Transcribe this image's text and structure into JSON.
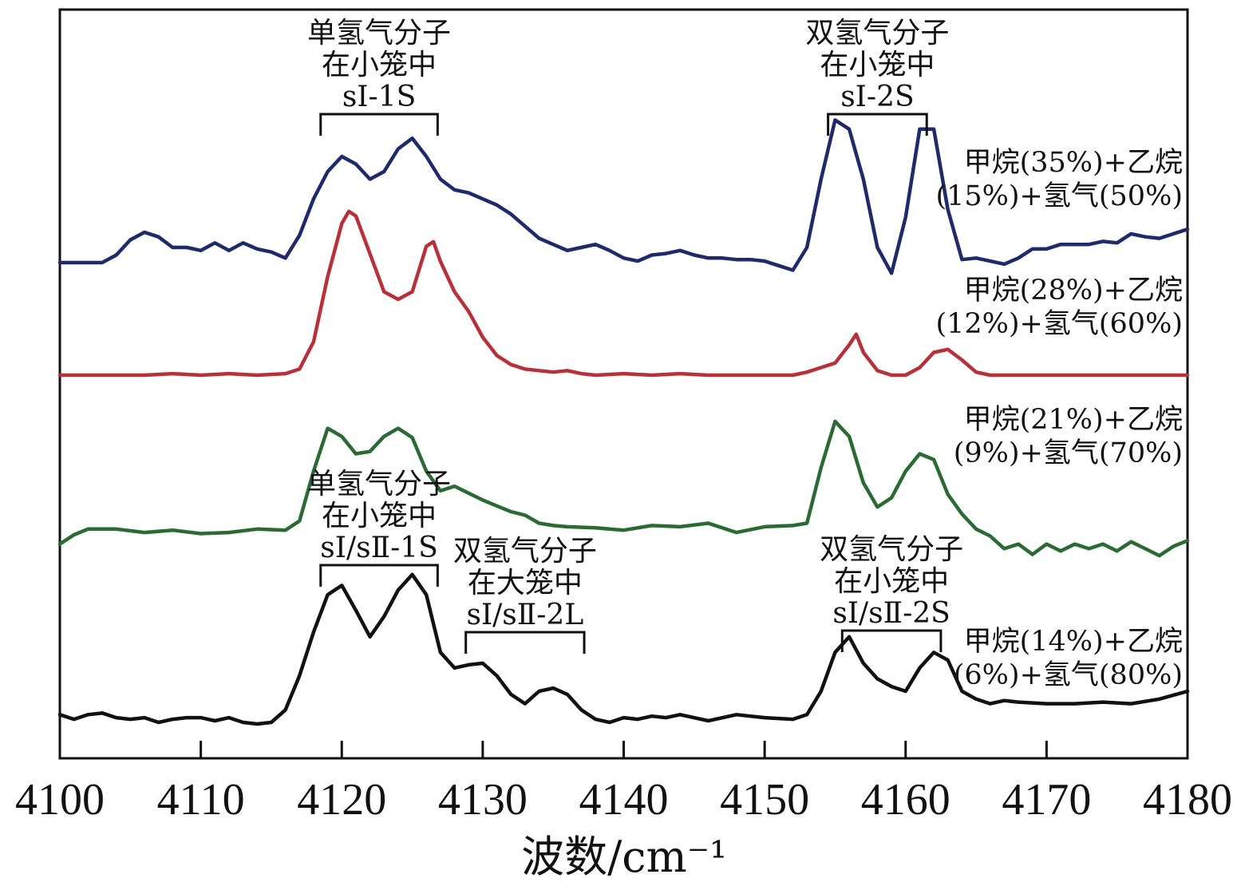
{
  "chart_data": {
    "type": "line",
    "xlabel": "波数/cm⁻¹",
    "ylabel": "",
    "xlim": [
      4100,
      4180
    ],
    "xticks": [
      4100,
      4110,
      4120,
      4130,
      4140,
      4150,
      4160,
      4170,
      4180
    ],
    "grid": false,
    "legend": "inline-right",
    "series": [
      {
        "name": "甲烷(35%)+乙烷(15%)+氢气(50%)",
        "label_lines": [
          "甲烷(35%)+乙烷",
          "(15%)+氢气(50%)"
        ],
        "color": "#1f2a6b",
        "x": [
          4100,
          4102,
          4103,
          4104,
          4105,
          4106,
          4107,
          4108,
          4109,
          4110,
          4111,
          4112,
          4113,
          4114,
          4115,
          4116,
          4117,
          4118,
          4119,
          4120,
          4121,
          4122,
          4123,
          4124,
          4125,
          4126,
          4127,
          4128,
          4129,
          4130,
          4131,
          4132,
          4133,
          4134,
          4135,
          4136,
          4137,
          4138,
          4139,
          4140,
          4141,
          4142,
          4143,
          4144,
          4145,
          4146,
          4147,
          4148,
          4149,
          4150,
          4151,
          4152,
          4153,
          4154,
          4155,
          4156,
          4157,
          4158,
          4159,
          4160,
          4161,
          4162,
          4163,
          4164,
          4165,
          4166,
          4167,
          4168,
          4169,
          4170,
          4171,
          4172,
          4173,
          4174,
          4175,
          4176,
          4177,
          4178,
          4180
        ],
        "y": [
          0.0,
          0.0,
          0.0,
          0.05,
          0.15,
          0.2,
          0.17,
          0.1,
          0.1,
          0.08,
          0.13,
          0.08,
          0.13,
          0.09,
          0.07,
          0.03,
          0.18,
          0.42,
          0.6,
          0.7,
          0.65,
          0.55,
          0.6,
          0.75,
          0.82,
          0.7,
          0.55,
          0.48,
          0.46,
          0.42,
          0.38,
          0.32,
          0.24,
          0.16,
          0.12,
          0.08,
          0.1,
          0.12,
          0.08,
          0.03,
          0.01,
          0.05,
          0.06,
          0.08,
          0.05,
          0.03,
          0.03,
          0.02,
          0.02,
          0.01,
          -0.02,
          -0.05,
          0.1,
          0.55,
          0.94,
          0.88,
          0.55,
          0.1,
          -0.07,
          0.3,
          0.88,
          0.88,
          0.35,
          0.02,
          0.03,
          0.01,
          -0.01,
          0.03,
          0.09,
          0.09,
          0.12,
          0.12,
          0.12,
          0.14,
          0.13,
          0.19,
          0.17,
          0.16,
          0.22
        ]
      },
      {
        "name": "甲烷(28%)+乙烷(12%)+氢气(60%)",
        "label_lines": [
          "甲烷(28%)+乙烷",
          "(12%)+氢气(60%)"
        ],
        "color": "#b8303a",
        "x": [
          4100,
          4104,
          4106,
          4108,
          4110,
          4112,
          4114,
          4116,
          4117,
          4118,
          4119,
          4120,
          4120.5,
          4121,
          4122,
          4123,
          4124,
          4125,
          4126,
          4126.5,
          4127,
          4128,
          4129,
          4130,
          4131,
          4132,
          4133,
          4134,
          4135,
          4136,
          4137,
          4138,
          4140,
          4142,
          4144,
          4146,
          4148,
          4150,
          4152,
          4153,
          4154,
          4155,
          4156,
          4156.5,
          4157,
          4158,
          4159,
          4160,
          4161,
          4162,
          4163,
          4164,
          4165,
          4166,
          4170,
          4175,
          4180
        ],
        "y": [
          0.0,
          0.0,
          0.0,
          0.01,
          0.0,
          0.01,
          0.0,
          0.01,
          0.04,
          0.22,
          0.65,
          1.0,
          1.08,
          1.05,
          0.8,
          0.55,
          0.5,
          0.55,
          0.85,
          0.88,
          0.75,
          0.55,
          0.42,
          0.25,
          0.13,
          0.07,
          0.04,
          0.03,
          0.02,
          0.03,
          0.01,
          0.0,
          0.01,
          0.0,
          0.01,
          0.0,
          0.0,
          0.0,
          0.0,
          0.02,
          0.05,
          0.08,
          0.2,
          0.27,
          0.15,
          0.03,
          0.0,
          0.0,
          0.05,
          0.15,
          0.17,
          0.1,
          0.02,
          0.0,
          0.0,
          0.0,
          0.0
        ]
      },
      {
        "name": "甲烷(21%)+乙烷(9%)+氢气(70%)",
        "label_lines": [
          "甲烷(21%)+乙烷",
          "(9%)+氢气(70%)"
        ],
        "color": "#2a6a33",
        "x": [
          4100,
          4101,
          4102,
          4104,
          4106,
          4108,
          4110,
          4112,
          4114,
          4116,
          4117,
          4118,
          4119,
          4120,
          4121,
          4122,
          4123,
          4124,
          4125,
          4126,
          4127,
          4128,
          4129,
          4130,
          4131,
          4132,
          4133,
          4134,
          4135,
          4136,
          4138,
          4140,
          4142,
          4144,
          4146,
          4148,
          4150,
          4152,
          4153,
          4154,
          4155,
          4156,
          4157,
          4158,
          4159,
          4160,
          4161,
          4162,
          4163,
          4164,
          4165,
          4166,
          4167,
          4168,
          4169,
          4170,
          4171,
          4172,
          4173,
          4174,
          4175,
          4176,
          4177,
          4178,
          4179,
          4180
        ],
        "y": [
          -0.08,
          0.0,
          0.05,
          0.05,
          0.02,
          0.04,
          0.01,
          0.02,
          0.05,
          0.04,
          0.12,
          0.55,
          0.92,
          0.85,
          0.7,
          0.72,
          0.85,
          0.92,
          0.84,
          0.55,
          0.38,
          0.42,
          0.36,
          0.3,
          0.25,
          0.2,
          0.17,
          0.1,
          0.08,
          0.07,
          0.06,
          0.04,
          0.08,
          0.07,
          0.1,
          0.02,
          0.07,
          0.08,
          0.1,
          0.58,
          0.98,
          0.85,
          0.45,
          0.24,
          0.32,
          0.55,
          0.7,
          0.65,
          0.35,
          0.18,
          0.05,
          -0.01,
          -0.12,
          -0.08,
          -0.17,
          -0.08,
          -0.14,
          -0.08,
          -0.12,
          -0.08,
          -0.14,
          -0.06,
          -0.12,
          -0.18,
          -0.1,
          -0.05
        ]
      },
      {
        "name": "甲烷(14%)+乙烷(6%)+氢气(80%)",
        "label_lines": [
          "甲烷(14%)+乙烷",
          "(6%)+氢气(80%)"
        ],
        "color": "#111111",
        "x": [
          4100,
          4101,
          4102,
          4103,
          4104,
          4105,
          4106,
          4107,
          4108,
          4109,
          4110,
          4111,
          4112,
          4113,
          4114,
          4115,
          4116,
          4117,
          4118,
          4119,
          4120,
          4121,
          4122,
          4123,
          4124,
          4125,
          4126,
          4127,
          4128,
          4129,
          4130,
          4131,
          4132,
          4133,
          4134,
          4135,
          4136,
          4137,
          4138,
          4139,
          4140,
          4141,
          4142,
          4143,
          4144,
          4146,
          4148,
          4150,
          4152,
          4153,
          4154,
          4155,
          4156,
          4157,
          4158,
          4159,
          4160,
          4161,
          4162,
          4163,
          4164,
          4165,
          4166,
          4167,
          4168,
          4170,
          4172,
          4174,
          4176,
          4178,
          4180
        ],
        "y": [
          0.05,
          0.02,
          0.05,
          0.06,
          0.03,
          0.02,
          0.03,
          0.0,
          0.02,
          0.03,
          0.03,
          0.01,
          0.03,
          0.0,
          -0.01,
          0.0,
          0.08,
          0.3,
          0.58,
          0.82,
          0.88,
          0.72,
          0.55,
          0.68,
          0.85,
          0.95,
          0.82,
          0.45,
          0.35,
          0.37,
          0.38,
          0.3,
          0.18,
          0.12,
          0.2,
          0.22,
          0.18,
          0.08,
          0.02,
          0.0,
          0.03,
          0.02,
          0.04,
          0.03,
          0.05,
          0.01,
          0.05,
          0.03,
          0.02,
          0.05,
          0.2,
          0.45,
          0.55,
          0.38,
          0.28,
          0.23,
          0.2,
          0.35,
          0.45,
          0.4,
          0.2,
          0.15,
          0.12,
          0.14,
          0.13,
          0.12,
          0.12,
          0.13,
          0.12,
          0.15,
          0.2
        ]
      }
    ],
    "annotations": [
      {
        "lines": [
          "单氢气分子",
          "在小笼中",
          "sⅠ-1S"
        ],
        "bracket": [
          4118.5,
          4126.8
        ],
        "series_index": 0
      },
      {
        "lines": [
          "双氢气分子",
          "在小笼中",
          "sⅠ-2S"
        ],
        "bracket": [
          4154.5,
          4161.5
        ],
        "series_index": 0
      },
      {
        "lines": [
          "单氢气分子",
          "在小笼中",
          "sⅠ/sⅡ-1S"
        ],
        "bracket": [
          4118.5,
          4126.8
        ],
        "series_index": 3
      },
      {
        "lines": [
          "双氢气分子",
          "在大笼中",
          "sⅠ/sⅡ-2L"
        ],
        "bracket": [
          4128.8,
          4137.2
        ],
        "series_index": 3
      },
      {
        "lines": [
          "双氢气分子",
          "在小笼中",
          "sⅠ/sⅡ-2S"
        ],
        "bracket": [
          4155.5,
          4162.5
        ],
        "series_index": 3
      }
    ]
  }
}
